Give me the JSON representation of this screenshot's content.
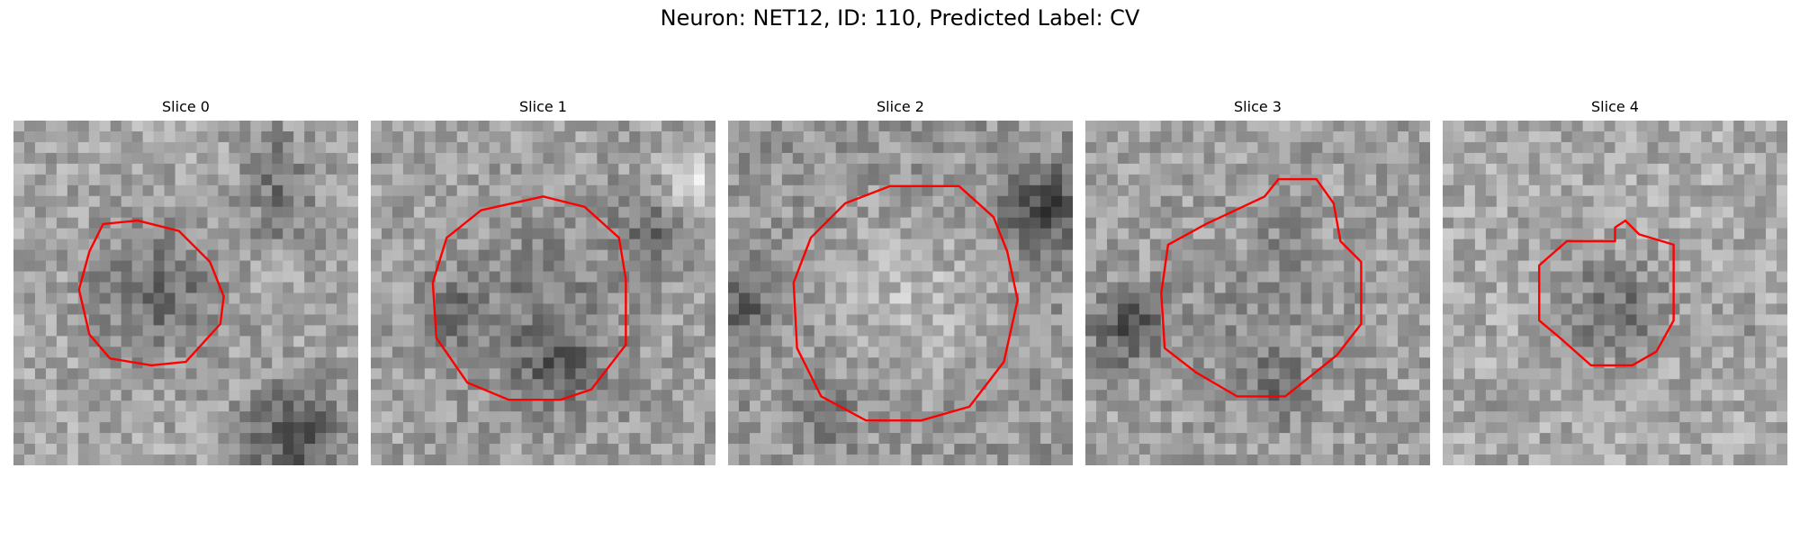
{
  "figure": {
    "title": "Neuron: NET12, ID: 110, Predicted Label: CV"
  },
  "panels": [
    {
      "title": "Slice 0"
    },
    {
      "title": "Slice 1"
    },
    {
      "title": "Slice 2"
    },
    {
      "title": "Slice 3"
    },
    {
      "title": "Slice 4"
    }
  ],
  "colors": {
    "contour": "#ff0000",
    "background": "#ffffff"
  }
}
